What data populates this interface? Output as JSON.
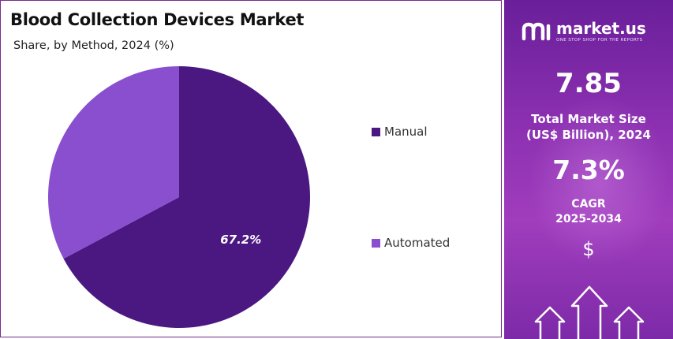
{
  "chart_data": {
    "type": "pie",
    "title": "Blood Collection Devices Market",
    "subtitle": "Share, by Method, 2024 (%)",
    "slices": [
      {
        "name": "Manual",
        "value": 67.2,
        "color": "#4b1882",
        "label": "67.2%"
      },
      {
        "name": "Automated",
        "value": 32.8,
        "color": "#8a4fcf",
        "label": ""
      }
    ],
    "legend_position": "right"
  },
  "side_panel": {
    "brand_name": "market.us",
    "brand_tagline": "ONE STOP SHOP FOR THE REPORTS",
    "market_size_value": "7.85",
    "market_size_label_1": "Total Market Size",
    "market_size_label_2": "(US$ Billion), 2024",
    "cagr_value": "7.3%",
    "cagr_label_1": "CAGR",
    "cagr_label_2": "2025-2034",
    "currency_symbol": "$",
    "logo_icon": "market-us-logo-icon",
    "arrows_icon": "up-arrows-icon",
    "gradient_top": "#6a1f9a",
    "gradient_bottom": "#a03dbd"
  }
}
